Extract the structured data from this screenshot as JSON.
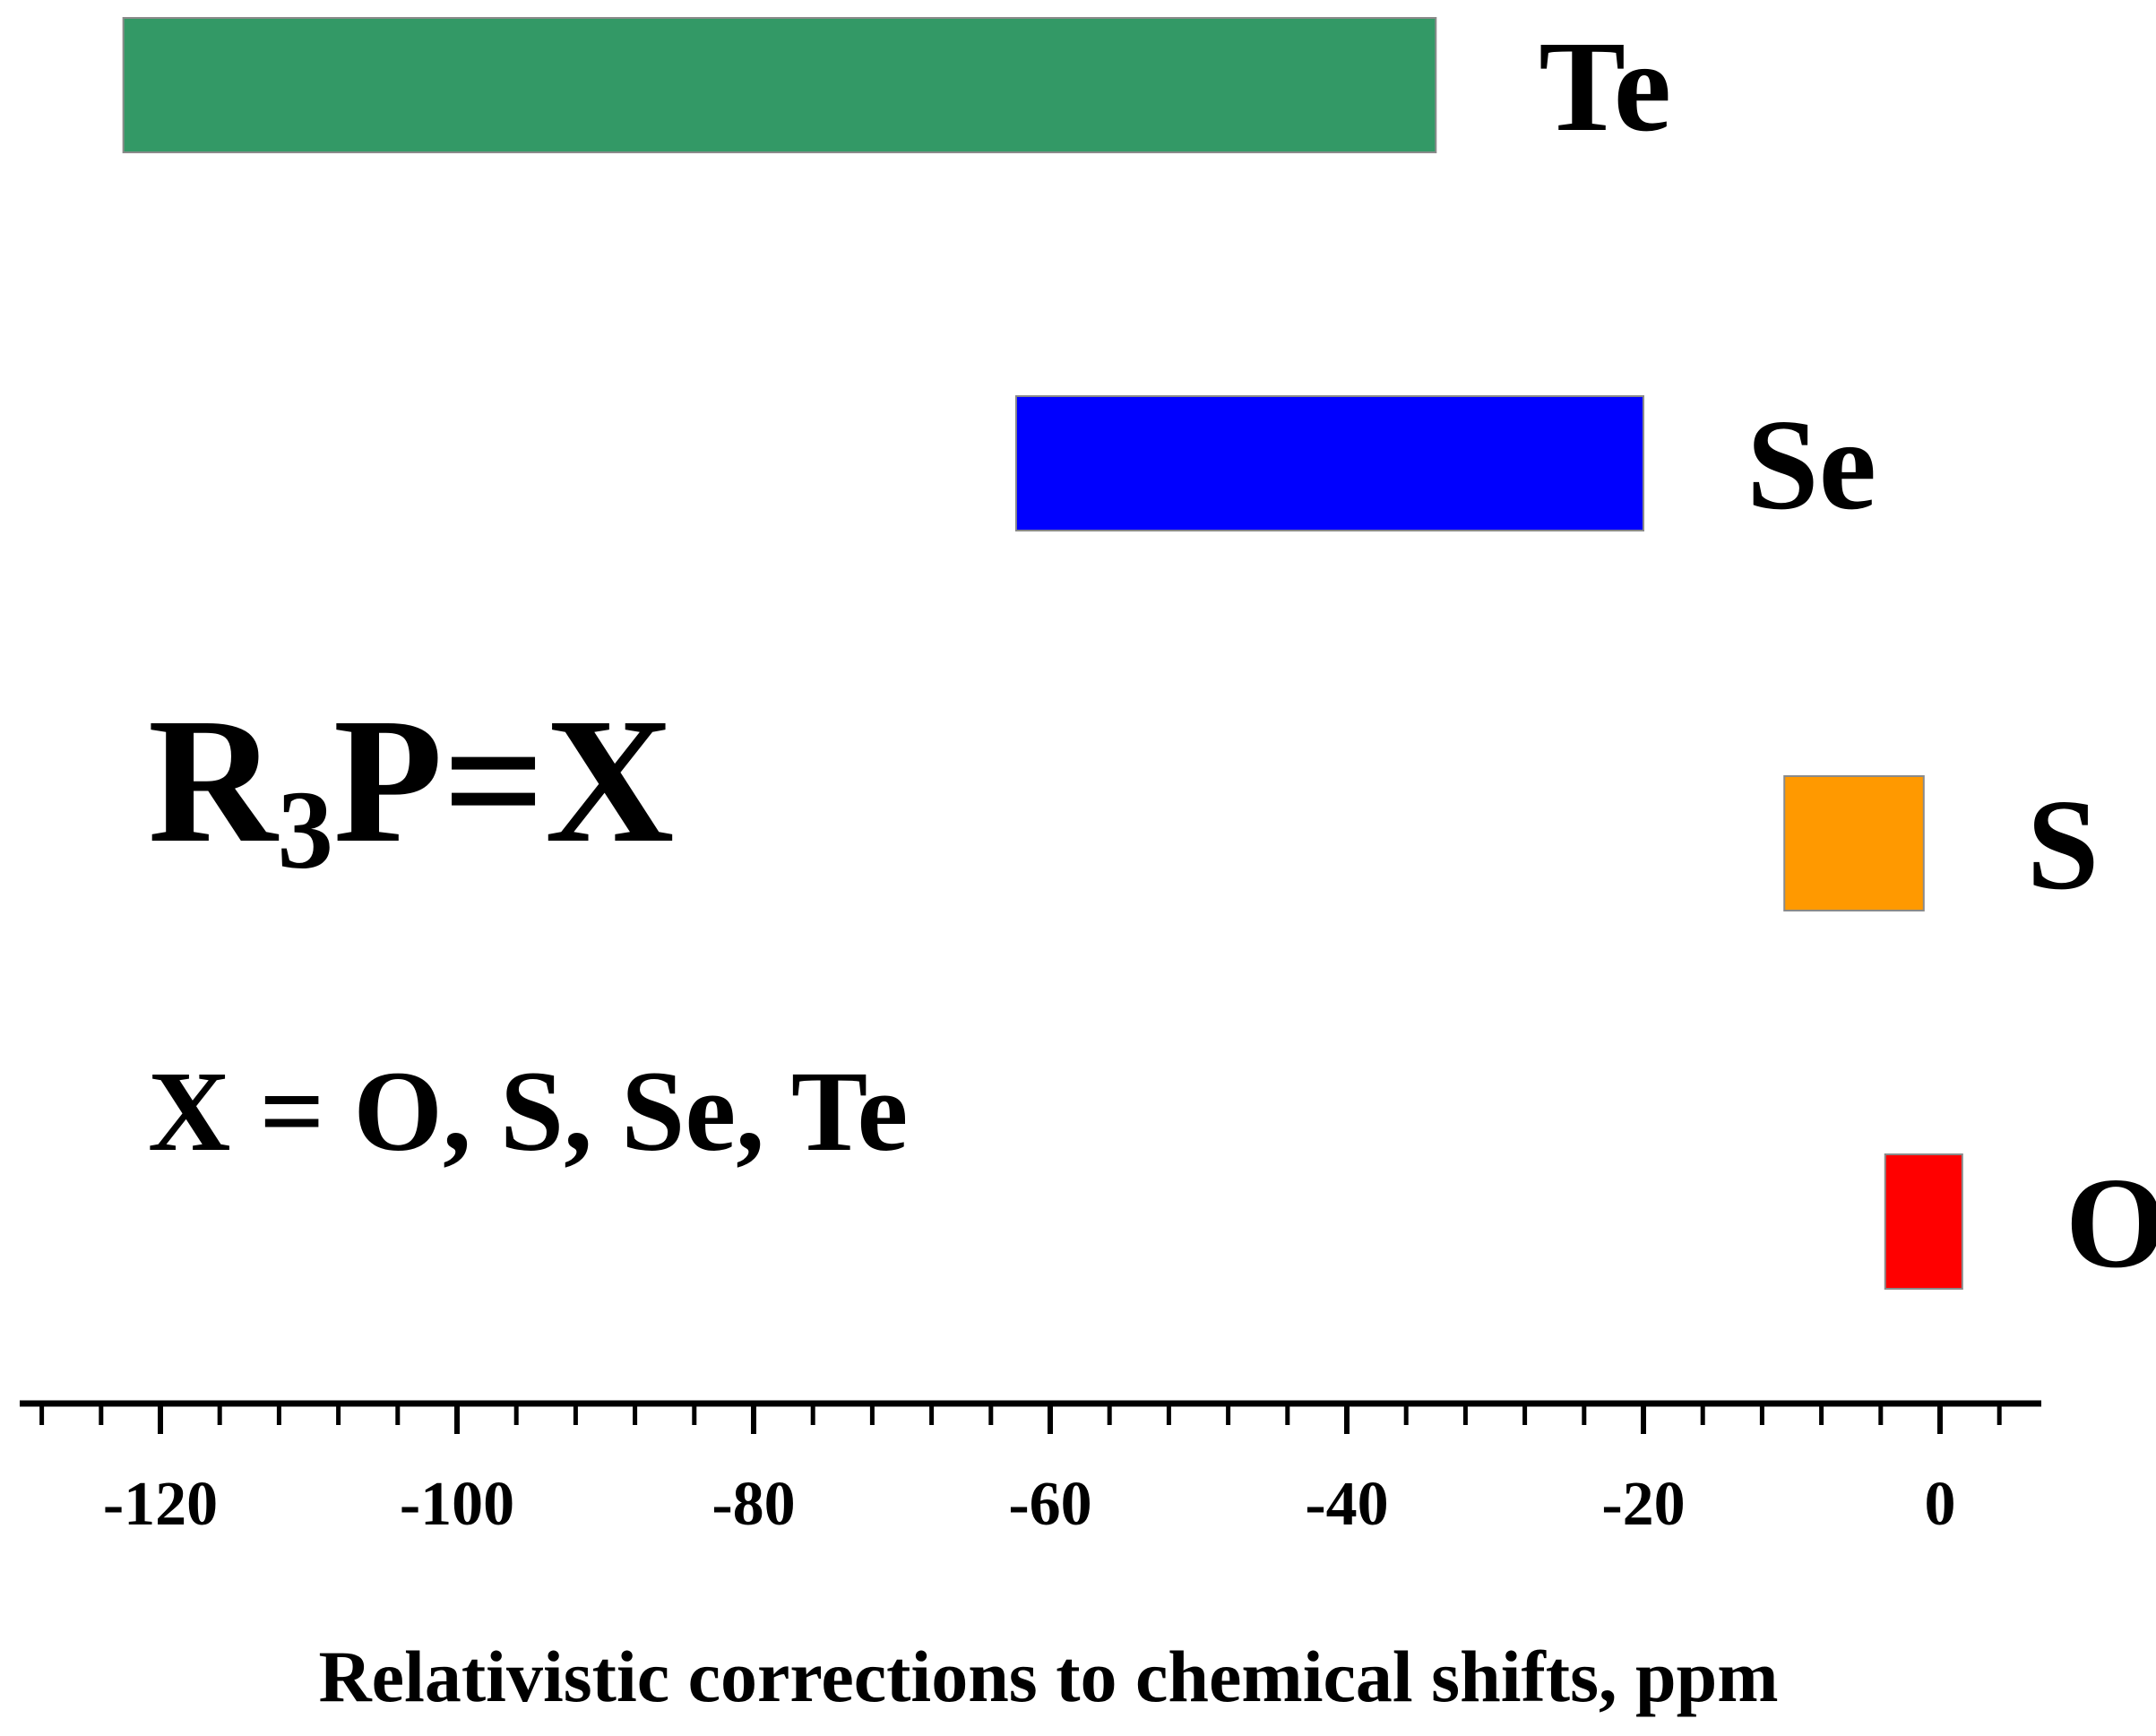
{
  "chart_data": {
    "type": "bar",
    "orientation": "horizontal",
    "categories": [
      "Te",
      "Se",
      "S",
      "O"
    ],
    "ranges": [
      {
        "label": "Te",
        "start": -122.5,
        "end": -34.0,
        "color": "#339966"
      },
      {
        "label": "Se",
        "start": -62.3,
        "end": -20.0,
        "color": "#0000ff"
      },
      {
        "label": "S",
        "start": -10.5,
        "end": -1.1,
        "color": "#ff9900"
      },
      {
        "label": "O",
        "start": -3.7,
        "end": 1.5,
        "color": "#ff0000"
      }
    ],
    "xlabel": "Relativistic corrections to chemical shifts, ppm",
    "ylabel": "",
    "xlim": [
      -130,
      7
    ],
    "x_ticks": [
      "-120",
      "-100",
      "-80",
      "-60",
      "-40",
      "-20",
      "0"
    ],
    "grid": false,
    "annotation": {
      "formula_main": "R",
      "formula_sub": "3",
      "formula_rest": "P=X",
      "substituents": "X = O, S, Se, Te"
    }
  }
}
